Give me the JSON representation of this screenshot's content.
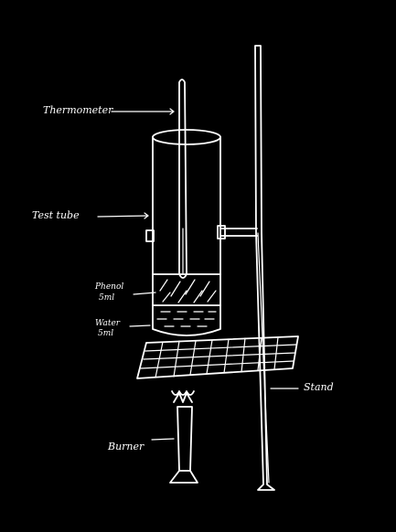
{
  "labels": {
    "thermometer": "Thermometer",
    "test_tube": "Test tube",
    "phenol_line1": "Phenol",
    "phenol_line2": "5ml",
    "water_line1": "Water",
    "water_line2": "5ml",
    "stand": "Stand",
    "burner": "Burner"
  },
  "colors": {
    "background": "#000000",
    "ink": "#ffffff"
  }
}
